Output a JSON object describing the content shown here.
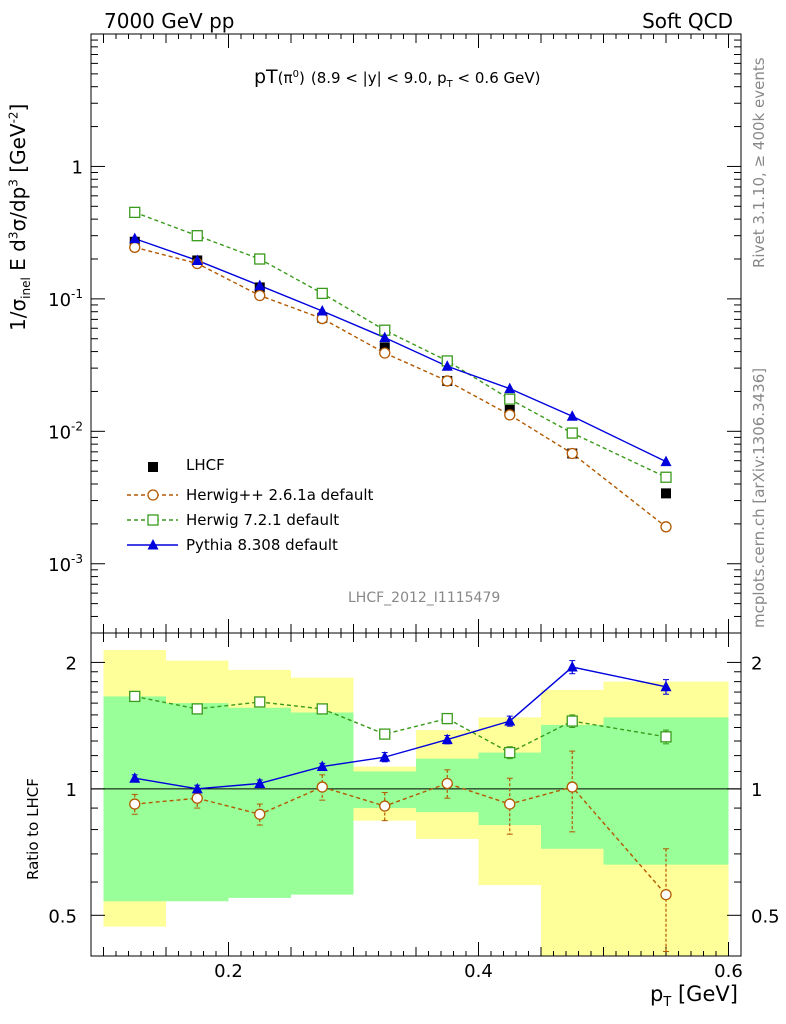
{
  "header": {
    "left": "7000 GeV pp",
    "right": "Soft QCD"
  },
  "title": {
    "main": "pT",
    "sup": "(π",
    "sup0": "0",
    "supClose": ")",
    "cut": "(8.9 < |y| < 9.0, p",
    "cutSub": "T",
    "cutEnd": " < 0.6 GeV)"
  },
  "side": {
    "rivet": "Rivet 3.1.10, ≥ 400k events",
    "mcplots": "mcplots.cern.ch [arXiv:1306.3436]"
  },
  "analysis": "LHCF_2012_I1115479",
  "ylabel_main": "1/σ_inel E d³σ/dp³ [GeV⁻²]",
  "ylabel_ratio": "Ratio to LHCF",
  "xlabel": "p_T [GeV]",
  "colors": {
    "herwig6": "#b35900",
    "herwig7": "#3a9a1c",
    "pythia": "#0000dd",
    "band_yellow": "#ffff99",
    "band_green": "#99ff99"
  },
  "chart_data": [
    {
      "type": "scatter",
      "title": "pT(π0) (8.9 < |y| < 9.0, pT < 0.6 GeV)",
      "xlabel": "pT [GeV]",
      "ylabel": "1/σinel E d3σ/dp3 [GeV-2]",
      "yscale": "log",
      "xlim": [
        0.09,
        0.61
      ],
      "ylim": [
        0.0003,
        10
      ],
      "x_ticks": [
        "0.2",
        "0.4",
        "0.6"
      ],
      "y_ticks": [
        "10^-3",
        "10^-2",
        "10^-1",
        "1"
      ],
      "x": [
        0.125,
        0.175,
        0.225,
        0.275,
        0.325,
        0.375,
        0.425,
        0.475,
        0.55
      ],
      "series": [
        {
          "name": "LHCF",
          "marker": "square-filled",
          "values": [
            0.27,
            0.195,
            0.122,
            0.072,
            0.043,
            0.024,
            0.0145,
            0.0068,
            0.0034
          ]
        },
        {
          "name": "Herwig++ 2.6.1a default",
          "marker": "circle-open",
          "line": "dashed",
          "values": [
            0.245,
            0.185,
            0.106,
            0.071,
            0.039,
            0.024,
            0.0133,
            0.0068,
            0.0019
          ]
        },
        {
          "name": "Herwig 7.2.1 default",
          "marker": "square-open",
          "line": "dashed",
          "values": [
            0.45,
            0.3,
            0.2,
            0.11,
            0.058,
            0.034,
            0.0175,
            0.0097,
            0.0045
          ]
        },
        {
          "name": "Pythia 8.308 default",
          "marker": "triangle-filled",
          "line": "solid",
          "values": [
            0.285,
            0.195,
            0.126,
            0.081,
            0.051,
            0.031,
            0.021,
            0.013,
            0.0059
          ]
        }
      ],
      "legend": [
        "LHCF",
        "Herwig++ 2.6.1a default",
        "Herwig 7.2.1 default",
        "Pythia 8.308 default"
      ]
    },
    {
      "type": "line",
      "ylabel": "Ratio to LHCF",
      "xlabel": "pT [GeV]",
      "yscale": "log",
      "xlim": [
        0.09,
        0.61
      ],
      "ylim": [
        0.4,
        2.35
      ],
      "y_ticks": [
        "0.5",
        "1",
        "2"
      ],
      "x_ticks": [
        "0.2",
        "0.4",
        "0.6"
      ],
      "bands": [
        {
          "x0": 0.1,
          "x1": 0.15,
          "yellow": [
            0.47,
            2.14
          ],
          "green": [
            0.54,
            1.66
          ]
        },
        {
          "x0": 0.15,
          "x1": 0.2,
          "yellow": [
            0.58,
            2.02
          ],
          "green": [
            0.54,
            1.6
          ]
        },
        {
          "x0": 0.2,
          "x1": 0.25,
          "yellow": [
            0.63,
            1.92
          ],
          "green": [
            0.55,
            1.56
          ]
        },
        {
          "x0": 0.25,
          "x1": 0.3,
          "yellow": [
            0.68,
            1.84
          ],
          "green": [
            0.56,
            1.52
          ]
        },
        {
          "x0": 0.3,
          "x1": 0.35,
          "yellow": [
            0.84,
            1.13
          ],
          "green": [
            0.9,
            1.1
          ]
        },
        {
          "x0": 0.35,
          "x1": 0.4,
          "yellow": [
            0.76,
            1.38
          ],
          "green": [
            0.88,
            1.18
          ]
        },
        {
          "x0": 0.4,
          "x1": 0.45,
          "yellow": [
            0.59,
            1.48
          ],
          "green": [
            0.82,
            1.22
          ]
        },
        {
          "x0": 0.45,
          "x1": 0.5,
          "yellow": [
            0.4,
            1.72
          ],
          "green": [
            0.72,
            1.42
          ]
        },
        {
          "x0": 0.5,
          "x1": 0.6,
          "yellow": [
            0.4,
            1.8
          ],
          "green": [
            0.66,
            1.48
          ]
        }
      ],
      "x": [
        0.125,
        0.175,
        0.225,
        0.275,
        0.325,
        0.375,
        0.425,
        0.475,
        0.55
      ],
      "series": [
        {
          "name": "Herwig++ 2.6.1a default",
          "values": [
            0.92,
            0.95,
            0.87,
            1.01,
            0.91,
            1.03,
            0.92,
            1.01,
            0.56
          ],
          "err": [
            0.05,
            0.05,
            0.05,
            0.07,
            0.07,
            0.08,
            0.14,
            0.22,
            0.16
          ]
        },
        {
          "name": "Herwig 7.2.1 default",
          "values": [
            1.66,
            1.55,
            1.61,
            1.55,
            1.35,
            1.47,
            1.22,
            1.45,
            1.33
          ],
          "err": [
            0.03,
            0.03,
            0.03,
            0.03,
            0.03,
            0.04,
            0.04,
            0.05,
            0.05
          ]
        },
        {
          "name": "Pythia 8.308 default",
          "values": [
            1.06,
            1.0,
            1.03,
            1.13,
            1.19,
            1.31,
            1.45,
            1.95,
            1.75
          ],
          "err": [
            0.02,
            0.02,
            0.02,
            0.02,
            0.03,
            0.03,
            0.04,
            0.07,
            0.07
          ]
        }
      ]
    }
  ]
}
